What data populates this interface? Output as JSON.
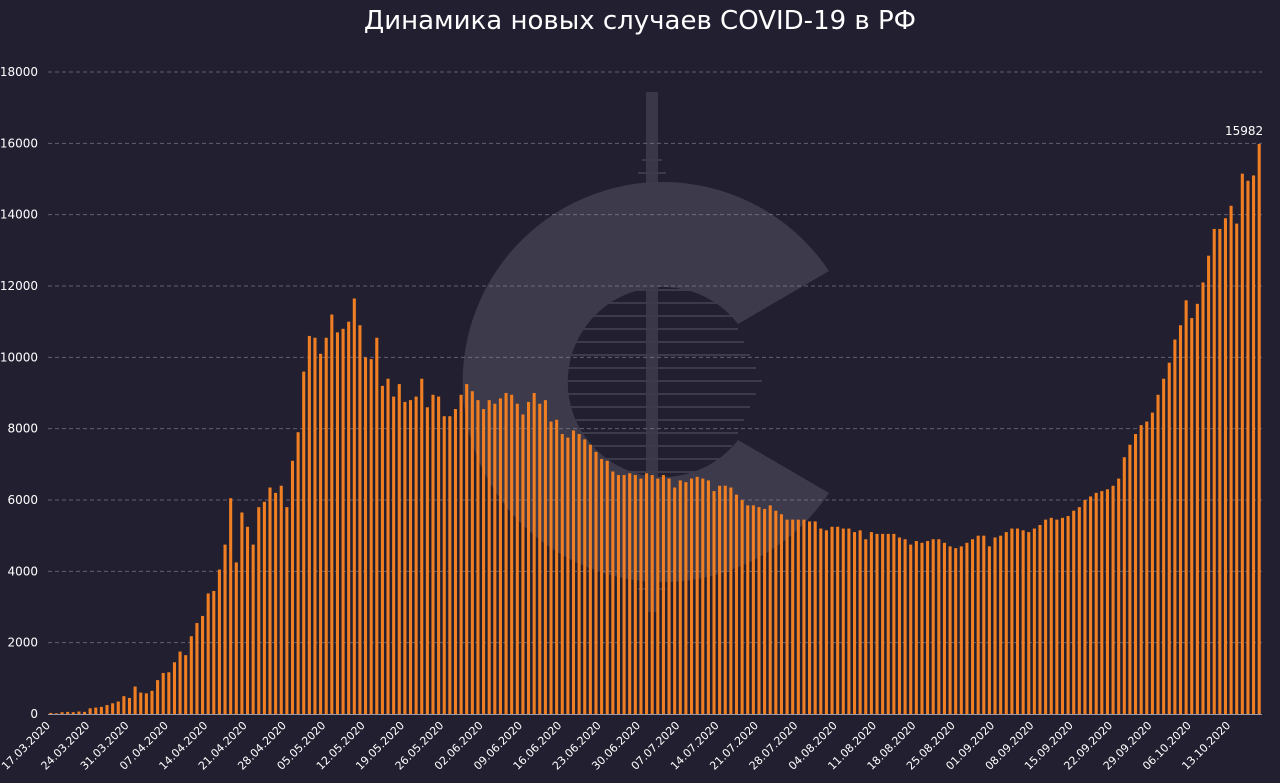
{
  "title": "Динамика новых случаев COVID-19 в РФ",
  "colors": {
    "background": "#211f30",
    "bar": "#ef7f22",
    "grid": "#9a98a6",
    "text": "#ffffff",
    "logo": "#4a4858"
  },
  "logo": {
    "icon": "c-logo-watermark"
  },
  "chart_data": {
    "type": "bar",
    "title": "Динамика новых случаев COVID-19 в РФ",
    "xlabel": "",
    "ylabel": "",
    "ylim": [
      0,
      18000
    ],
    "yticks": [
      0,
      2000,
      4000,
      6000,
      8000,
      10000,
      12000,
      14000,
      16000,
      18000
    ],
    "grid": true,
    "legend": "none",
    "x_start": "17.03.2020",
    "xtick_labels": [
      "17.03.2020",
      "24.03.2020",
      "31.03.2020",
      "07.04.2020",
      "14.04.2020",
      "21.04.2020",
      "28.04.2020",
      "05.05.2020",
      "12.05.2020",
      "19.05.2020",
      "26.05.2020",
      "02.06.2020",
      "09.06.2020",
      "16.06.2020",
      "23.06.2020",
      "30.06.2020",
      "07.07.2020",
      "14.07.2020",
      "21.07.2020",
      "28.07.2020",
      "04.08.2020",
      "11.08.2020",
      "18.08.2020",
      "25.08.2020",
      "01.09.2020",
      "08.09.2020",
      "15.09.2020",
      "22.09.2020",
      "29.09.2020",
      "06.10.2020",
      "13.10.2020"
    ],
    "values": [
      30,
      20,
      50,
      60,
      50,
      70,
      60,
      160,
      180,
      200,
      250,
      300,
      350,
      500,
      450,
      770,
      600,
      580,
      650,
      950,
      1150,
      1170,
      1450,
      1750,
      1650,
      2180,
      2550,
      2750,
      3380,
      3450,
      4050,
      4750,
      6050,
      4250,
      5650,
      5250,
      4750,
      5800,
      5950,
      6350,
      6200,
      6400,
      5800,
      7100,
      7900,
      9600,
      10600,
      10550,
      10100,
      10550,
      11200,
      10700,
      10800,
      11000,
      11650,
      10900,
      10000,
      9950,
      10550,
      9200,
      9400,
      8900,
      9250,
      8750,
      8800,
      8900,
      9400,
      8600,
      8950,
      8900,
      8350,
      8350,
      8550,
      8950,
      9250,
      9050,
      8800,
      8550,
      8800,
      8700,
      8850,
      9000,
      8950,
      8700,
      8400,
      8750,
      9000,
      8700,
      8800,
      8200,
      8250,
      7850,
      7750,
      7950,
      7850,
      7700,
      7550,
      7350,
      7150,
      7100,
      6800,
      6700,
      6700,
      6750,
      6700,
      6600,
      6750,
      6700,
      6600,
      6700,
      6600,
      6350,
      6550,
      6500,
      6600,
      6650,
      6600,
      6550,
      6250,
      6400,
      6400,
      6350,
      6150,
      6000,
      5850,
      5850,
      5800,
      5750,
      5850,
      5700,
      5600,
      5450,
      5450,
      5450,
      5450,
      5400,
      5400,
      5200,
      5150,
      5250,
      5250,
      5200,
      5200,
      5100,
      5150,
      4900,
      5100,
      5050,
      5050,
      5050,
      5050,
      4950,
      4900,
      4750,
      4850,
      4800,
      4850,
      4900,
      4900,
      4800,
      4700,
      4650,
      4700,
      4800,
      4900,
      5000,
      5000,
      4700,
      4950,
      5000,
      5100,
      5200,
      5200,
      5150,
      5100,
      5200,
      5300,
      5450,
      5500,
      5450,
      5500,
      5550,
      5700,
      5800,
      6000,
      6100,
      6200,
      6250,
      6300,
      6400,
      6600,
      7200,
      7550,
      7850,
      8100,
      8200,
      8450,
      8950,
      9400,
      9850,
      10500,
      10900,
      11600,
      11100,
      11500,
      12100,
      12850,
      13600,
      13600,
      13900,
      14250,
      13750,
      15150,
      14950,
      15100,
      15982
    ],
    "annotations": [
      {
        "label": "15982"
      }
    ]
  }
}
